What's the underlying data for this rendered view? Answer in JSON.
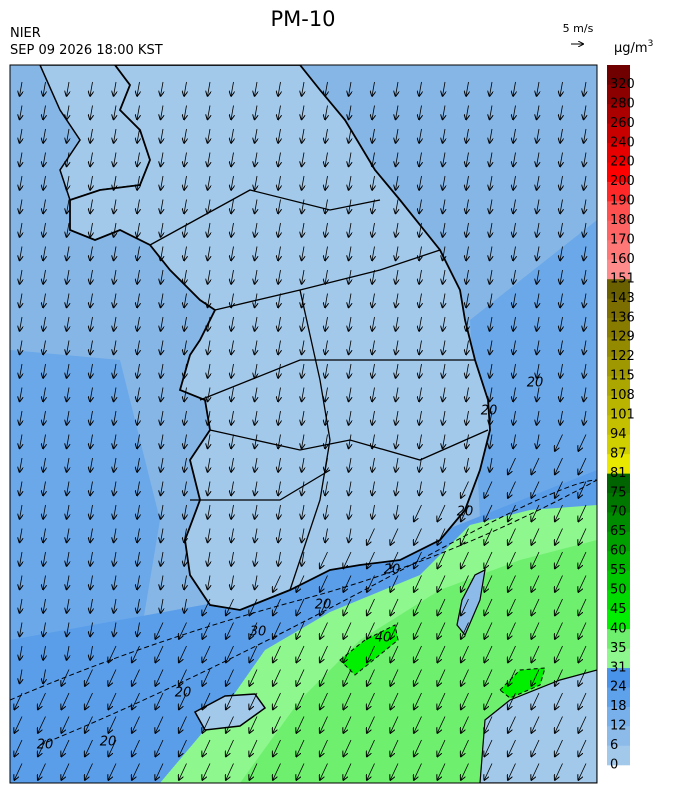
{
  "header": {
    "title": "PM-10",
    "agency": "NIER",
    "timestamp": "SEP 09 2026 18:00 KST",
    "wind_scale": "5 m/s"
  },
  "legend": {
    "unit": {
      "base": "μg/m",
      "exponent": "3"
    },
    "levels": [
      0,
      6,
      12,
      18,
      24,
      31,
      35,
      40,
      45,
      50,
      55,
      60,
      65,
      70,
      75,
      81,
      87,
      94,
      101,
      108,
      115,
      122,
      129,
      136,
      143,
      151,
      160,
      170,
      180,
      190,
      200,
      220,
      240,
      260,
      280,
      320
    ],
    "colors": [
      "#a3c9ea",
      "#8dbbe9",
      "#78b0eb",
      "#5fa2ec",
      "#4a93ea",
      "#8ef78e",
      "#6ef06e",
      "#00f000",
      "#00dc00",
      "#00c800",
      "#00b400",
      "#00a000",
      "#008c00",
      "#007800",
      "#006400",
      "#e8e800",
      "#d0d000",
      "#c4c000",
      "#b8b400",
      "#aca600",
      "#a09800",
      "#948a00",
      "#887c00",
      "#7c6e00",
      "#6b6000",
      "#ff8c8c",
      "#ff7878",
      "#ff6464",
      "#ff5050",
      "#ff2828",
      "#ff0000",
      "#e60000",
      "#c80000",
      "#aa0000",
      "#8c0000",
      "#700000"
    ]
  },
  "contours": {
    "labels": [
      "20",
      "20",
      "20",
      "20",
      "20",
      "20",
      "20",
      "20",
      "30",
      "40"
    ]
  }
}
